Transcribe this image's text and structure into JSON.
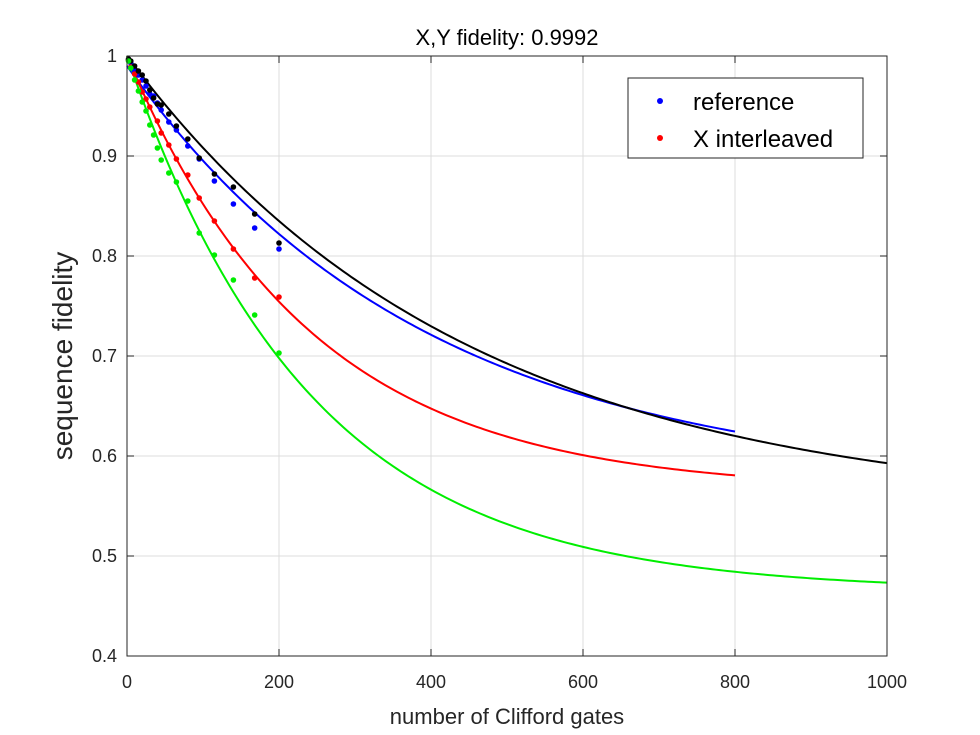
{
  "chart_data": {
    "type": "scatter",
    "title": "X,Y fidelity: 0.9992",
    "xlabel": "number of Clifford gates",
    "ylabel": "sequence fidelity",
    "xlim": [
      0,
      1000
    ],
    "ylim": [
      0.4,
      1.0
    ],
    "x_ticks": [
      0,
      200,
      400,
      600,
      800,
      1000
    ],
    "y_ticks": [
      0.4,
      0.5,
      0.6,
      0.7,
      0.8,
      0.9,
      1
    ],
    "x_tick_labels": [
      "0",
      "200",
      "400",
      "600",
      "800",
      "1000"
    ],
    "y_tick_labels": [
      "0.4",
      "0.5",
      "0.6",
      "0.7",
      "0.8",
      "0.9",
      "1"
    ],
    "grid": true,
    "legend_position": "top-right",
    "legend": [
      {
        "label": "reference",
        "color": "#0000ff"
      },
      {
        "label": "X interleaved",
        "color": "#ff0000"
      }
    ],
    "series": [
      {
        "color": "#0000ff",
        "points": [
          [
            2,
            0.996
          ],
          [
            5,
            0.993
          ],
          [
            10,
            0.985
          ],
          [
            15,
            0.981
          ],
          [
            20,
            0.976
          ],
          [
            25,
            0.97
          ],
          [
            30,
            0.962
          ],
          [
            35,
            0.96
          ],
          [
            40,
            0.953
          ],
          [
            45,
            0.946
          ],
          [
            55,
            0.934
          ],
          [
            65,
            0.926
          ],
          [
            80,
            0.91
          ],
          [
            95,
            0.897
          ],
          [
            115,
            0.875
          ],
          [
            140,
            0.852
          ],
          [
            168,
            0.828
          ],
          [
            200,
            0.807
          ]
        ],
        "fit": {
          "A": 0.42,
          "p": 0.99745,
          "B": 0.57
        },
        "fit_range": [
          0,
          800
        ]
      },
      {
        "color": "#ff0000",
        "points": [
          [
            2,
            0.996
          ],
          [
            5,
            0.989
          ],
          [
            10,
            0.982
          ],
          [
            15,
            0.974
          ],
          [
            20,
            0.964
          ],
          [
            25,
            0.957
          ],
          [
            30,
            0.949
          ],
          [
            40,
            0.935
          ],
          [
            45,
            0.923
          ],
          [
            55,
            0.911
          ],
          [
            65,
            0.897
          ],
          [
            80,
            0.881
          ],
          [
            95,
            0.858
          ],
          [
            115,
            0.835
          ],
          [
            140,
            0.807
          ],
          [
            168,
            0.778
          ],
          [
            200,
            0.759
          ]
        ],
        "fit": {
          "A": 0.435,
          "p": 0.99585,
          "B": 0.565
        },
        "fit_range": [
          0,
          800
        ]
      },
      {
        "color": "#000000",
        "points": [
          [
            2,
            0.997
          ],
          [
            5,
            0.995
          ],
          [
            10,
            0.99
          ],
          [
            15,
            0.985
          ],
          [
            20,
            0.981
          ],
          [
            25,
            0.975
          ],
          [
            30,
            0.966
          ],
          [
            35,
            0.958
          ],
          [
            40,
            0.952
          ],
          [
            45,
            0.951
          ],
          [
            55,
            0.942
          ],
          [
            65,
            0.93
          ],
          [
            80,
            0.917
          ],
          [
            95,
            0.898
          ],
          [
            115,
            0.882
          ],
          [
            140,
            0.869
          ],
          [
            168,
            0.842
          ],
          [
            200,
            0.813
          ]
        ],
        "fit": {
          "A": 0.455,
          "p": 0.99775,
          "B": 0.545
        },
        "fit_range": [
          0,
          1000
        ]
      },
      {
        "color": "#00ee00",
        "points": [
          [
            2,
            0.995
          ],
          [
            5,
            0.988
          ],
          [
            10,
            0.976
          ],
          [
            15,
            0.965
          ],
          [
            20,
            0.954
          ],
          [
            25,
            0.945
          ],
          [
            30,
            0.931
          ],
          [
            35,
            0.921
          ],
          [
            40,
            0.908
          ],
          [
            45,
            0.896
          ],
          [
            55,
            0.883
          ],
          [
            65,
            0.874
          ],
          [
            80,
            0.855
          ],
          [
            95,
            0.823
          ],
          [
            115,
            0.801
          ],
          [
            140,
            0.776
          ],
          [
            168,
            0.741
          ],
          [
            200,
            0.703
          ]
        ],
        "fit": {
          "A": 0.535,
          "p": 0.99585,
          "B": 0.465
        },
        "fit_range": [
          0,
          1000
        ]
      }
    ]
  }
}
